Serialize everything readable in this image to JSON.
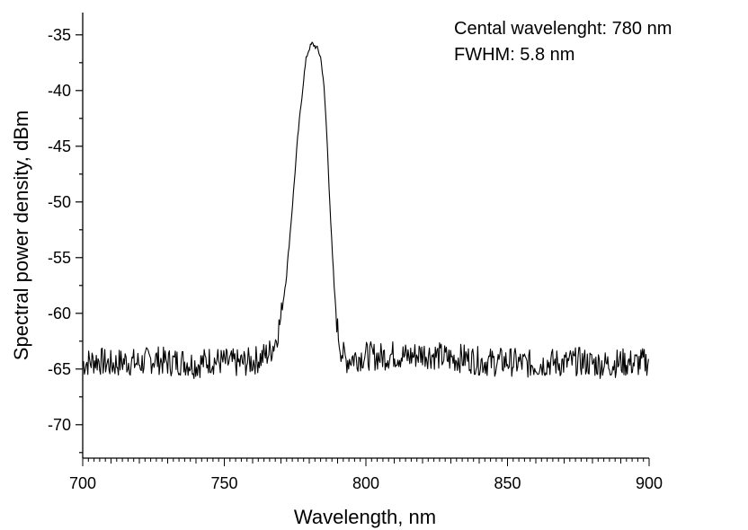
{
  "chart_data": {
    "type": "line",
    "title": "",
    "xlabel": "Wavelength, nm",
    "ylabel": "Spectral power density, dBm",
    "xlim": [
      700,
      900
    ],
    "ylim": [
      -73,
      -33
    ],
    "x_ticks": [
      700,
      750,
      800,
      850,
      900
    ],
    "y_ticks": [
      -70,
      -65,
      -60,
      -55,
      -50,
      -45,
      -40,
      -35
    ],
    "x_tick_labels": [
      "700",
      "750",
      "800",
      "850",
      "900"
    ],
    "y_tick_labels": [
      "-70",
      "-65",
      "-60",
      "-55",
      "-50",
      "-45",
      "-40",
      "-35"
    ],
    "grid": false,
    "annotations": [
      "Cental wavelenght: 780 nm",
      "FWHM: 5.8 nm"
    ],
    "series": [
      {
        "name": "",
        "color": "#000000",
        "x": [
          700,
          705,
          710,
          715,
          720,
          725,
          730,
          735,
          740,
          745,
          750,
          755,
          760,
          763,
          766,
          768,
          770,
          772,
          774,
          776,
          778,
          779,
          780,
          781,
          782,
          783,
          784,
          785,
          786,
          787,
          788,
          789,
          790,
          791,
          792,
          793,
          795,
          800,
          805,
          810,
          815,
          820,
          825,
          830,
          835,
          840,
          845,
          850,
          855,
          860,
          865,
          870,
          875,
          880,
          885,
          890,
          895,
          900
        ],
        "y": [
          -64.5,
          -64.2,
          -64.6,
          -64.3,
          -64.5,
          -64.1,
          -64.4,
          -64.3,
          -64.6,
          -64.2,
          -64.4,
          -64.5,
          -64.3,
          -64.0,
          -63.5,
          -62.5,
          -60.5,
          -56.5,
          -50.5,
          -44.0,
          -39.0,
          -37.0,
          -36.2,
          -35.8,
          -36.0,
          -36.3,
          -37.0,
          -39.0,
          -43.0,
          -48.5,
          -54.0,
          -58.5,
          -61.5,
          -63.0,
          -63.8,
          -64.2,
          -64.0,
          -63.8,
          -63.9,
          -63.7,
          -63.9,
          -63.6,
          -63.8,
          -64.1,
          -64.0,
          -64.3,
          -64.4,
          -64.3,
          -64.5,
          -64.6,
          -64.4,
          -64.5,
          -64.3,
          -64.5,
          -64.6,
          -64.4,
          -64.5,
          -64.3
        ]
      }
    ]
  }
}
